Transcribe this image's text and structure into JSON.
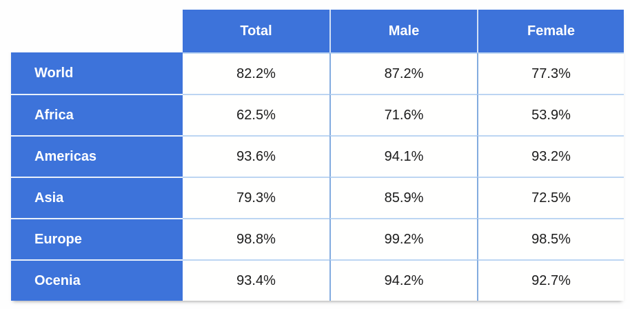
{
  "table": {
    "corner_label": "",
    "columns": [
      "Total",
      "Male",
      "Female"
    ],
    "rows": [
      {
        "label": "World",
        "values": [
          "82.2%",
          "87.2%",
          "77.3%"
        ]
      },
      {
        "label": "Africa",
        "values": [
          "62.5%",
          "71.6%",
          "53.9%"
        ]
      },
      {
        "label": "Americas",
        "values": [
          "93.6%",
          "94.1%",
          "93.2%"
        ]
      },
      {
        "label": "Asia",
        "values": [
          "79.3%",
          "85.9%",
          "72.5%"
        ]
      },
      {
        "label": "Europe",
        "values": [
          "98.8%",
          "99.2%",
          "98.5%"
        ]
      },
      {
        "label": "Ocenia",
        "values": [
          "93.4%",
          "94.2%",
          "92.7%"
        ]
      }
    ]
  },
  "chart_data": {
    "type": "table",
    "title": "",
    "columns": [
      "Total",
      "Male",
      "Female"
    ],
    "row_labels": [
      "World",
      "Africa",
      "Americas",
      "Asia",
      "Europe",
      "Ocenia"
    ],
    "series": [
      {
        "name": "Total",
        "values": [
          82.2,
          62.5,
          93.6,
          79.3,
          98.8,
          93.4
        ]
      },
      {
        "name": "Male",
        "values": [
          87.2,
          71.6,
          94.1,
          85.9,
          99.2,
          94.2
        ]
      },
      {
        "name": "Female",
        "values": [
          77.3,
          53.9,
          93.2,
          72.5,
          98.5,
          92.7
        ]
      }
    ],
    "unit": "%"
  },
  "colors": {
    "header_blue": "#3D73DA",
    "header_text": "#FFFFFF",
    "header_divider": "#D3E0F5",
    "label_divider": "#E9F0FB",
    "row_divider": "#BCD5F2",
    "col_divider": "#82ABDF",
    "value_text": "#1B1B1B"
  }
}
